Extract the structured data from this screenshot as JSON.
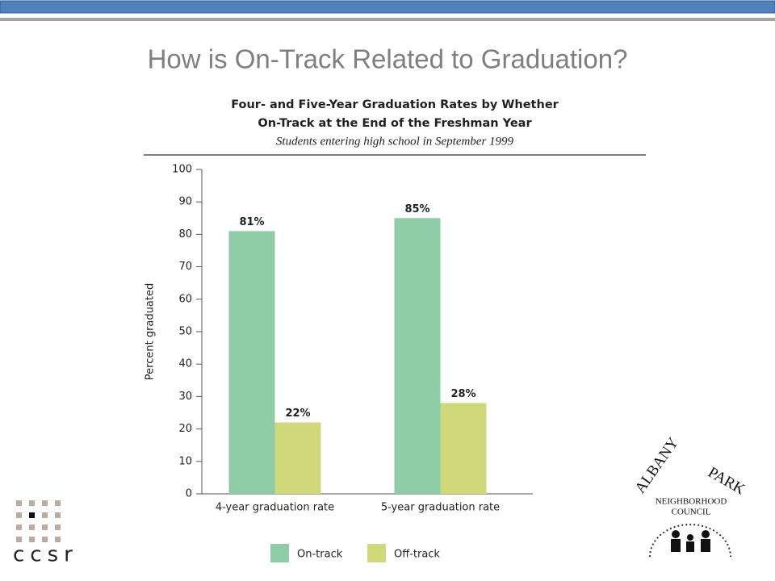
{
  "slide": {
    "title": "How is On-Track Related to Graduation?"
  },
  "chart_data": {
    "type": "bar",
    "title": [
      "Four- and Five-Year Graduation Rates by Whether",
      "On-Track at the End of the Freshman Year"
    ],
    "subtitle": "Students entering high school in September 1999",
    "y_label": "Percent graduated",
    "categories": [
      "4-year graduation rate",
      "5-year graduation rate"
    ],
    "series": [
      {
        "name": "On-track",
        "color": "#8dcca6",
        "values": [
          81,
          85
        ],
        "value_labels": [
          "81%",
          "85%"
        ]
      },
      {
        "name": "Off-track",
        "color": "#cfd97a",
        "values": [
          22,
          28
        ],
        "value_labels": [
          "22%",
          "28%"
        ]
      }
    ],
    "ylim": [
      0,
      100
    ],
    "yticks": [
      0,
      10,
      20,
      30,
      40,
      50,
      60,
      70,
      80,
      90,
      100
    ]
  },
  "logos": {
    "left": "ccsr",
    "right": [
      "ALBANY",
      "PARK",
      "NEIGHBORHOOD",
      "COUNCIL"
    ]
  }
}
